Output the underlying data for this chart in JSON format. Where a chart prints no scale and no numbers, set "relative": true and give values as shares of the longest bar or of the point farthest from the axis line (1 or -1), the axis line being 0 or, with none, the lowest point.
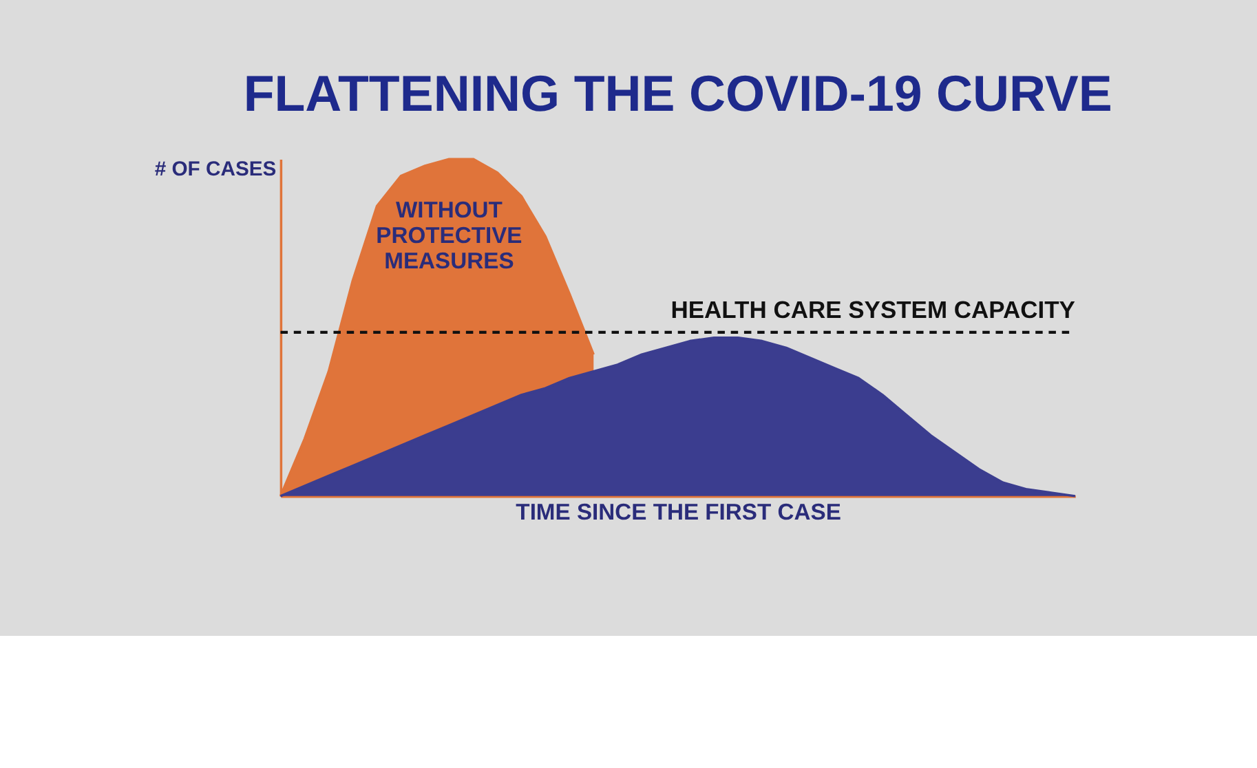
{
  "chart_data": {
    "type": "area",
    "relative": true,
    "title": "FLATTENING THE COVID-19 CURVE",
    "xlabel": "TIME SINCE THE FIRST CASE",
    "ylabel": "# OF CASES",
    "categories": [
      null,
      null,
      null,
      null,
      null,
      null,
      null,
      null,
      null,
      null,
      null,
      null,
      null,
      null,
      null,
      null,
      null,
      null,
      null,
      null,
      null,
      null,
      null,
      null,
      null,
      null,
      null,
      null,
      null,
      null,
      null,
      null,
      null,
      null
    ],
    "series": [
      {
        "name": "WITHOUT PROTECTIVE MEASURES",
        "color": "#e0743a",
        "values": [
          0,
          0.17,
          0.37,
          0.64,
          0.86,
          0.95,
          0.98,
          1.0,
          1.0,
          0.96,
          0.89,
          0.77,
          0.6,
          0.42,
          null,
          null,
          null,
          null,
          null,
          null,
          null,
          null,
          null,
          null,
          null,
          null,
          null,
          null,
          null,
          null,
          null,
          null,
          null,
          null
        ]
      },
      {
        "color": "#3b3d8f",
        "values": [
          0,
          0.03,
          0.06,
          0.09,
          0.12,
          0.15,
          0.18,
          0.21,
          0.24,
          0.27,
          0.3,
          0.32,
          0.35,
          0.37,
          0.39,
          0.42,
          0.44,
          0.46,
          0.47,
          0.47,
          0.46,
          0.44,
          0.41,
          0.38,
          0.35,
          0.3,
          0.24,
          0.18,
          0.13,
          0.08,
          0.04,
          0.02,
          0.01,
          0
        ]
      }
    ],
    "ref_lines": [
      {
        "axis": "y",
        "value": 0.486,
        "label": "HEALTH CARE SYSTEM CAPACITY",
        "color": "#111111",
        "line_style": "dashed"
      }
    ],
    "line_style": "solid"
  }
}
